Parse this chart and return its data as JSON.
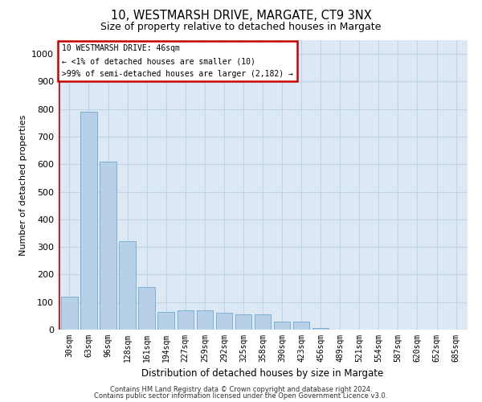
{
  "title1": "10, WESTMARSH DRIVE, MARGATE, CT9 3NX",
  "title2": "Size of property relative to detached houses in Margate",
  "xlabel": "Distribution of detached houses by size in Margate",
  "ylabel": "Number of detached properties",
  "categories": [
    "30sqm",
    "63sqm",
    "96sqm",
    "128sqm",
    "161sqm",
    "194sqm",
    "227sqm",
    "259sqm",
    "292sqm",
    "325sqm",
    "358sqm",
    "390sqm",
    "423sqm",
    "456sqm",
    "489sqm",
    "521sqm",
    "554sqm",
    "587sqm",
    "620sqm",
    "652sqm",
    "685sqm"
  ],
  "values": [
    120,
    790,
    610,
    320,
    155,
    65,
    70,
    70,
    60,
    55,
    55,
    30,
    30,
    5,
    0,
    0,
    0,
    0,
    0,
    0,
    0
  ],
  "bar_color": "#b8cfe8",
  "bar_edge_color": "#7aafd4",
  "ylim": [
    0,
    1050
  ],
  "yticks": [
    0,
    100,
    200,
    300,
    400,
    500,
    600,
    700,
    800,
    900,
    1000
  ],
  "grid_color": "#c0d4e8",
  "bg_color": "#dce8f4",
  "annotation_text": "10 WESTMARSH DRIVE: 46sqm\n← <1% of detached houses are smaller (10)\n>99% of semi-detached houses are larger (2,182) →",
  "annotation_box_color": "#ffffff",
  "annotation_box_edge": "#cc0000",
  "red_line_color": "#cc0000",
  "footer1": "Contains HM Land Registry data © Crown copyright and database right 2024.",
  "footer2": "Contains public sector information licensed under the Open Government Licence v3.0.",
  "title1_fontsize": 10.5,
  "title2_fontsize": 9,
  "ylabel_fontsize": 8,
  "xlabel_fontsize": 8.5,
  "tick_fontsize": 7,
  "annotation_fontsize": 7,
  "footer_fontsize": 6
}
